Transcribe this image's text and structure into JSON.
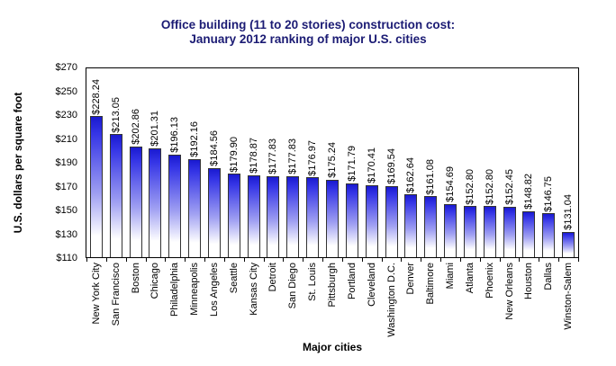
{
  "title": {
    "line1": "Office building (11 to 20 stories) construction cost:",
    "line2": "January 2012 ranking of major U.S. cities"
  },
  "chart_data": {
    "type": "bar",
    "title": "Office building (11 to 20 stories) construction cost: January 2012 ranking of major U.S. cities",
    "xlabel": "Major cities",
    "ylabel": "U.S. dollars per square foot",
    "ylim": [
      110,
      270
    ],
    "ytick_step": 20,
    "ytick_labels": [
      "$270",
      "$250",
      "$230",
      "$210",
      "$190",
      "$170",
      "$150",
      "$130",
      "$110"
    ],
    "grid": false,
    "legend": false,
    "categories": [
      "New York City",
      "San Francisco",
      "Boston",
      "Chicago",
      "Philadelphia",
      "Minneapolis",
      "Los Angeles",
      "Seattle",
      "Kansas City",
      "Detroit",
      "San Diego",
      "St. Louis",
      "Pittsburgh",
      "Portland",
      "Cleveland",
      "Washington D.C.",
      "Denver",
      "Baltimore",
      "Miami",
      "Atlanta",
      "Phoenix",
      "New Orleans",
      "Houston",
      "Dallas",
      "Winston-Salem"
    ],
    "values": [
      228.24,
      213.05,
      202.86,
      201.31,
      196.13,
      192.16,
      184.56,
      179.9,
      178.87,
      177.83,
      177.83,
      176.97,
      175.24,
      171.79,
      170.41,
      169.54,
      162.64,
      161.08,
      154.69,
      152.8,
      152.8,
      152.45,
      148.82,
      146.75,
      131.04
    ],
    "value_labels": [
      "$228.24",
      "$213.05",
      "$202.86",
      "$201.31",
      "$196.13",
      "$192.16",
      "$184.56",
      "$179.90",
      "$178.87",
      "$177.83",
      "$177.83",
      "$176.97",
      "$175.24",
      "$171.79",
      "$170.41",
      "$169.54",
      "$162.64",
      "$161.08",
      "$154.69",
      "$152.80",
      "$152.80",
      "$152.45",
      "$148.82",
      "$146.75",
      "$131.04"
    ],
    "colors": {
      "title": "#1b1b74",
      "bar_gradient_top": "#1a1ad0",
      "bar_gradient_bottom": "#ffffff",
      "bar_border": "#333333",
      "axis": "#000000",
      "text": "#000000"
    }
  }
}
